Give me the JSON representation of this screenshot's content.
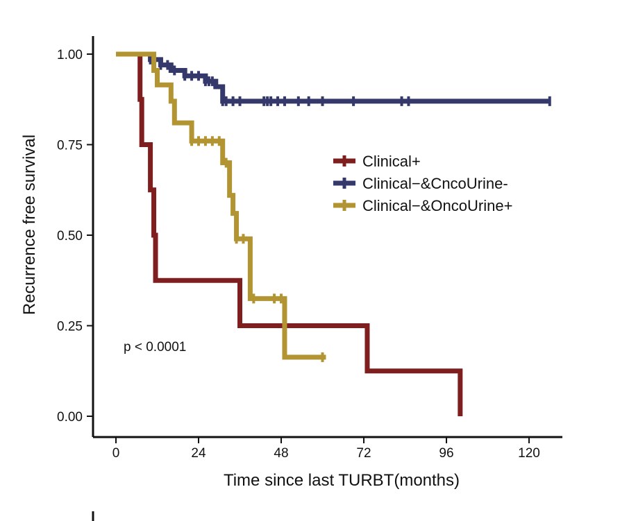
{
  "chart_data": {
    "type": "line",
    "subtype": "kaplan-meier",
    "xlabel": "Time since last TURBT(months)",
    "ylabel": "Recurrence free survival",
    "xlim": [
      -6,
      130
    ],
    "ylim": [
      -0.05,
      1.05
    ],
    "xticks": [
      0,
      24,
      48,
      72,
      96,
      120
    ],
    "xtick_labels": [
      "0",
      "24",
      "48",
      "72",
      "96",
      "120"
    ],
    "yticks": [
      0,
      0.25,
      0.5,
      0.75,
      1.0
    ],
    "ytick_labels": [
      "0.00",
      "0.25",
      "0.50",
      "0.75",
      "1.00"
    ],
    "annotation": "p < 0.0001",
    "legend_position": "right",
    "series": [
      {
        "name": "Clinical+",
        "color": "#7f1e1e",
        "steps": [
          [
            0,
            1.0
          ],
          [
            7,
            0.875
          ],
          [
            7.5,
            0.75
          ],
          [
            10,
            0.625
          ],
          [
            11,
            0.5
          ],
          [
            11.5,
            0.375
          ],
          [
            36,
            0.25
          ],
          [
            73,
            0.125
          ],
          [
            100,
            0.0
          ]
        ],
        "end_x": 100,
        "censors": []
      },
      {
        "name": "Clinical−&CncoUrine-",
        "color": "#34386a",
        "steps": [
          [
            0,
            1.0
          ],
          [
            10,
            0.985
          ],
          [
            13,
            0.97
          ],
          [
            16,
            0.955
          ],
          [
            20,
            0.94
          ],
          [
            26,
            0.925
          ],
          [
            29,
            0.91
          ],
          [
            31,
            0.87
          ]
        ],
        "end_x": 126,
        "censors": [
          10,
          11,
          13,
          15,
          17,
          20,
          22,
          24,
          26,
          27,
          28,
          31,
          32,
          34,
          36,
          43,
          44,
          45,
          47,
          49,
          53,
          56,
          60,
          69,
          83,
          85,
          126
        ]
      },
      {
        "name": "Clinical−&OncoUrine+",
        "color": "#b39432",
        "steps": [
          [
            0,
            1.0
          ],
          [
            11,
            0.955
          ],
          [
            12,
            0.915
          ],
          [
            16,
            0.87
          ],
          [
            17,
            0.81
          ],
          [
            22,
            0.76
          ],
          [
            31,
            0.7
          ],
          [
            33,
            0.61
          ],
          [
            34,
            0.56
          ],
          [
            35,
            0.49
          ],
          [
            39,
            0.325
          ],
          [
            49,
            0.163
          ]
        ],
        "end_x": 61,
        "censors": [
          22,
          24,
          26,
          28,
          30,
          32,
          35,
          37,
          40,
          46,
          48,
          60
        ]
      }
    ]
  }
}
